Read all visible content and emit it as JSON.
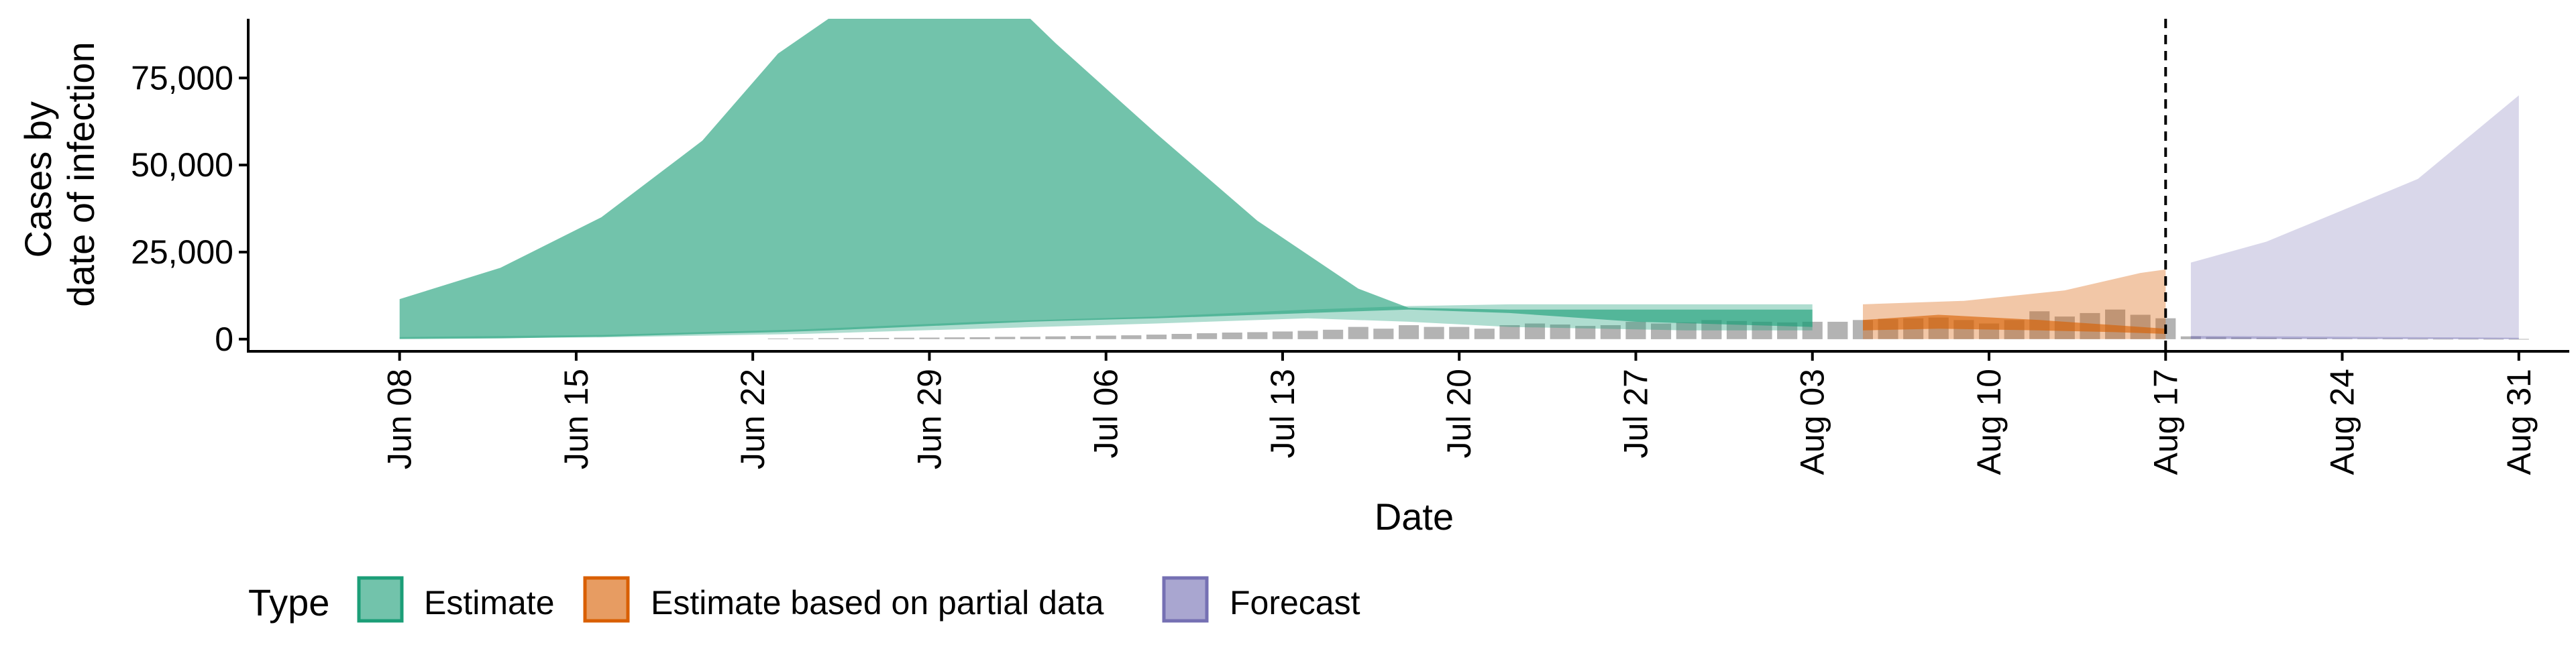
{
  "chart_data": {
    "type": "area",
    "xlabel": "Date",
    "ylabel_lines": [
      "Cases by",
      "date of infection"
    ],
    "x_tick_labels": [
      {
        "date": "2020-06-08",
        "label": "Jun 08"
      },
      {
        "date": "2020-06-15",
        "label": "Jun 15"
      },
      {
        "date": "2020-06-22",
        "label": "Jun 22"
      },
      {
        "date": "2020-06-29",
        "label": "Jun 29"
      },
      {
        "date": "2020-07-06",
        "label": "Jul 06"
      },
      {
        "date": "2020-07-13",
        "label": "Jul 13"
      },
      {
        "date": "2020-07-20",
        "label": "Jul 20"
      },
      {
        "date": "2020-07-27",
        "label": "Jul 27"
      },
      {
        "date": "2020-08-03",
        "label": "Aug 03"
      },
      {
        "date": "2020-08-10",
        "label": "Aug 10"
      },
      {
        "date": "2020-08-17",
        "label": "Aug 17"
      },
      {
        "date": "2020-08-24",
        "label": "Aug 24"
      },
      {
        "date": "2020-08-31",
        "label": "Aug 31"
      }
    ],
    "y_ticks": [
      {
        "value": 0,
        "label": "0"
      },
      {
        "value": 25000,
        "label": "25,000"
      },
      {
        "value": 50000,
        "label": "50,000"
      },
      {
        "value": 75000,
        "label": "75,000"
      }
    ],
    "xlim": [
      "2020-06-02",
      "2020-09-02"
    ],
    "ylim": [
      -3500,
      92000
    ],
    "vline_date": "2020-08-17",
    "legend": {
      "title": "Type",
      "position": "bottom",
      "entries": [
        "Estimate",
        "Estimate based on partial data",
        "Forecast"
      ]
    },
    "colors": {
      "Estimate": "#1b9e77",
      "Estimate based on partial data": "#d95f02",
      "Forecast": "#7570b3",
      "observed_bars": "#b3b3b3"
    },
    "series": [
      {
        "type_key": "Estimate",
        "band": "outer",
        "opacity": 0.62,
        "points": [
          [
            "2020-06-08",
            0,
            11500
          ],
          [
            "2020-06-12",
            200,
            20500
          ],
          [
            "2020-06-16",
            700,
            35000
          ],
          [
            "2020-06-20",
            1500,
            57000
          ],
          [
            "2020-06-23",
            2000,
            82000
          ],
          [
            "2020-06-25",
            2500,
            92000
          ],
          [
            "2020-07-03",
            5000,
            92000
          ],
          [
            "2020-07-04",
            5200,
            85000
          ],
          [
            "2020-07-08",
            6000,
            59000
          ],
          [
            "2020-07-12",
            7000,
            34000
          ],
          [
            "2020-07-16",
            8000,
            14500
          ],
          [
            "2020-07-18",
            8500,
            9000
          ],
          [
            "2020-07-22",
            7500,
            8500
          ],
          [
            "2020-07-27",
            5000,
            8500
          ],
          [
            "2020-08-03",
            3500,
            8500
          ]
        ]
      },
      {
        "type_key": "Estimate",
        "band": "inner",
        "opacity": 0.35,
        "points": [
          [
            "2020-06-08",
            200,
            600
          ],
          [
            "2020-06-16",
            500,
            1200
          ],
          [
            "2020-06-24",
            1500,
            2800
          ],
          [
            "2020-07-01",
            3000,
            5000
          ],
          [
            "2020-07-08",
            4500,
            6500
          ],
          [
            "2020-07-14",
            6000,
            8500
          ],
          [
            "2020-07-18",
            5000,
            9500
          ],
          [
            "2020-07-22",
            3500,
            10000
          ],
          [
            "2020-07-29",
            2500,
            10000
          ],
          [
            "2020-08-03",
            2500,
            10000
          ]
        ]
      },
      {
        "type_key": "Estimate based on partial data",
        "band": "outer",
        "opacity": 0.35,
        "points": [
          [
            "2020-08-05",
            0,
            10000
          ],
          [
            "2020-08-09",
            0,
            11000
          ],
          [
            "2020-08-13",
            0,
            14000
          ],
          [
            "2020-08-16",
            0,
            19000
          ],
          [
            "2020-08-17",
            0,
            20000
          ]
        ]
      },
      {
        "type_key": "Estimate based on partial data",
        "band": "inner",
        "opacity": 0.62,
        "points": [
          [
            "2020-08-05",
            2500,
            5500
          ],
          [
            "2020-08-08",
            3000,
            7000
          ],
          [
            "2020-08-12",
            2500,
            5500
          ],
          [
            "2020-08-15",
            2000,
            4000
          ],
          [
            "2020-08-17",
            1500,
            3000
          ]
        ]
      },
      {
        "type_key": "Forecast",
        "band": "outer",
        "opacity": 0.28,
        "points": [
          [
            "2020-08-18",
            0,
            22000
          ],
          [
            "2020-08-21",
            0,
            28000
          ],
          [
            "2020-08-24",
            0,
            37000
          ],
          [
            "2020-08-27",
            0,
            46000
          ],
          [
            "2020-08-31",
            0,
            70000
          ]
        ]
      },
      {
        "type_key": "Forecast",
        "band": "inner",
        "opacity": 0.4,
        "points": [
          [
            "2020-08-18",
            100,
            900
          ],
          [
            "2020-08-24",
            100,
            700
          ],
          [
            "2020-08-31",
            0,
            400
          ]
        ]
      }
    ],
    "observed_bars": [
      [
        "2020-06-23",
        200
      ],
      [
        "2020-06-24",
        200
      ],
      [
        "2020-06-25",
        300
      ],
      [
        "2020-06-26",
        300
      ],
      [
        "2020-06-27",
        350
      ],
      [
        "2020-06-28",
        400
      ],
      [
        "2020-06-29",
        450
      ],
      [
        "2020-06-30",
        500
      ],
      [
        "2020-07-01",
        550
      ],
      [
        "2020-07-02",
        650
      ],
      [
        "2020-07-03",
        700
      ],
      [
        "2020-07-04",
        800
      ],
      [
        "2020-07-05",
        900
      ],
      [
        "2020-07-06",
        1000
      ],
      [
        "2020-07-07",
        1100
      ],
      [
        "2020-07-08",
        1300
      ],
      [
        "2020-07-09",
        1500
      ],
      [
        "2020-07-10",
        1700
      ],
      [
        "2020-07-11",
        1900
      ],
      [
        "2020-07-12",
        2000
      ],
      [
        "2020-07-13",
        2200
      ],
      [
        "2020-07-14",
        2400
      ],
      [
        "2020-07-15",
        2700
      ],
      [
        "2020-07-16",
        3500
      ],
      [
        "2020-07-17",
        3000
      ],
      [
        "2020-07-18",
        4000
      ],
      [
        "2020-07-19",
        3500
      ],
      [
        "2020-07-20",
        3500
      ],
      [
        "2020-07-21",
        3000
      ],
      [
        "2020-07-22",
        4000
      ],
      [
        "2020-07-23",
        4500
      ],
      [
        "2020-07-24",
        4200
      ],
      [
        "2020-07-25",
        3800
      ],
      [
        "2020-07-26",
        4000
      ],
      [
        "2020-07-27",
        5000
      ],
      [
        "2020-07-28",
        4500
      ],
      [
        "2020-07-29",
        4800
      ],
      [
        "2020-07-30",
        5500
      ],
      [
        "2020-07-31",
        5200
      ],
      [
        "2020-08-01",
        5000
      ],
      [
        "2020-08-02",
        4800
      ],
      [
        "2020-08-03",
        5000
      ],
      [
        "2020-08-04",
        5000
      ],
      [
        "2020-08-05",
        5500
      ],
      [
        "2020-08-06",
        5800
      ],
      [
        "2020-08-07",
        6000
      ],
      [
        "2020-08-08",
        6200
      ],
      [
        "2020-08-09",
        5500
      ],
      [
        "2020-08-10",
        4500
      ],
      [
        "2020-08-11",
        5500
      ],
      [
        "2020-08-12",
        8000
      ],
      [
        "2020-08-13",
        6500
      ],
      [
        "2020-08-14",
        7500
      ],
      [
        "2020-08-15",
        8500
      ],
      [
        "2020-08-16",
        7000
      ],
      [
        "2020-08-17",
        6000
      ],
      [
        "2020-08-18",
        800
      ],
      [
        "2020-08-19",
        600
      ],
      [
        "2020-08-20",
        500
      ],
      [
        "2020-08-21",
        400
      ],
      [
        "2020-08-22",
        300
      ],
      [
        "2020-08-23",
        300
      ],
      [
        "2020-08-24",
        200
      ],
      [
        "2020-08-25",
        200
      ],
      [
        "2020-08-26",
        150
      ],
      [
        "2020-08-27",
        100
      ],
      [
        "2020-08-28",
        100
      ],
      [
        "2020-08-29",
        100
      ],
      [
        "2020-08-30",
        80
      ],
      [
        "2020-08-31",
        60
      ]
    ]
  }
}
